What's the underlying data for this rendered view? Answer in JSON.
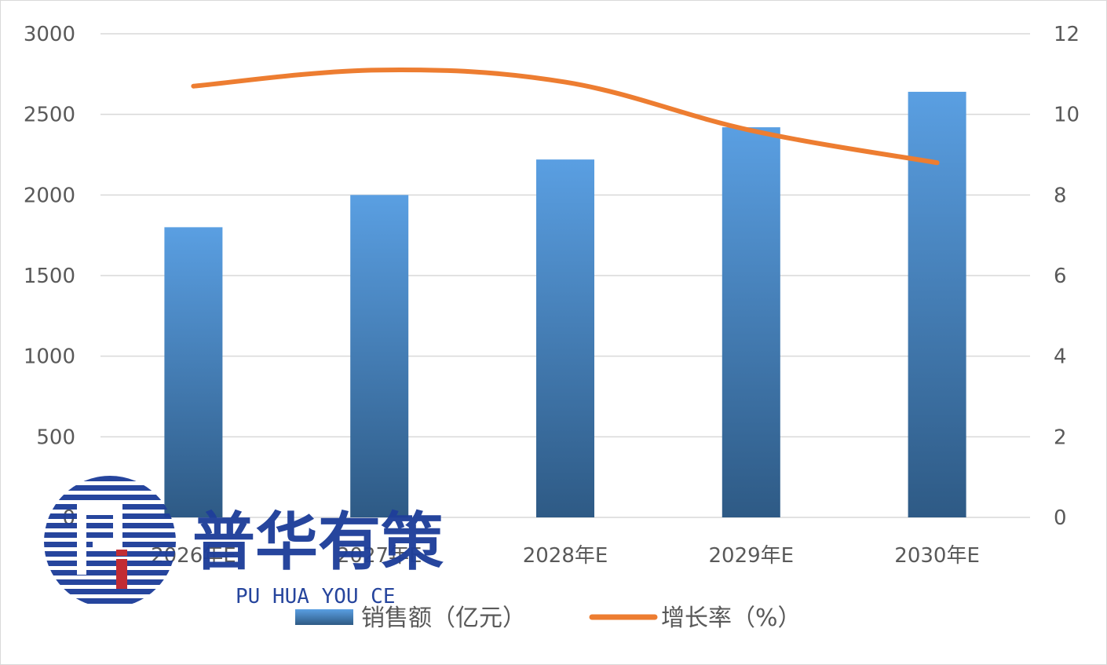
{
  "chart_data": {
    "type": "bar",
    "categories": [
      "2026年E",
      "2027年E",
      "2028年E",
      "2029年E",
      "2030年E"
    ],
    "series": [
      {
        "name": "销售额（亿元）",
        "type": "bar",
        "axis": "left",
        "values": [
          1800,
          2000,
          2220,
          2420,
          2640
        ]
      },
      {
        "name": "增长率（%）",
        "type": "line",
        "axis": "right",
        "values": [
          10.7,
          11.1,
          10.8,
          9.6,
          8.8
        ]
      }
    ],
    "y_left": {
      "min": 0,
      "max": 3000,
      "ticks": [
        "0",
        "500",
        "1000",
        "1500",
        "2000",
        "2500",
        "3000"
      ]
    },
    "y_right": {
      "min": 0,
      "max": 12,
      "ticks": [
        "0",
        "2",
        "4",
        "6",
        "8",
        "10",
        "12"
      ]
    },
    "grid": true,
    "legend_position": "bottom",
    "colors": {
      "bar_top": "#5a9fe2",
      "bar_bottom": "#2e5a85",
      "line": "#ed7d31",
      "grid": "#d9d9d9"
    }
  },
  "watermark": {
    "title": "普华有策",
    "subtitle": "PU HUA YOU CE",
    "color": "#1f3f9a",
    "accent": "#c0262d"
  }
}
